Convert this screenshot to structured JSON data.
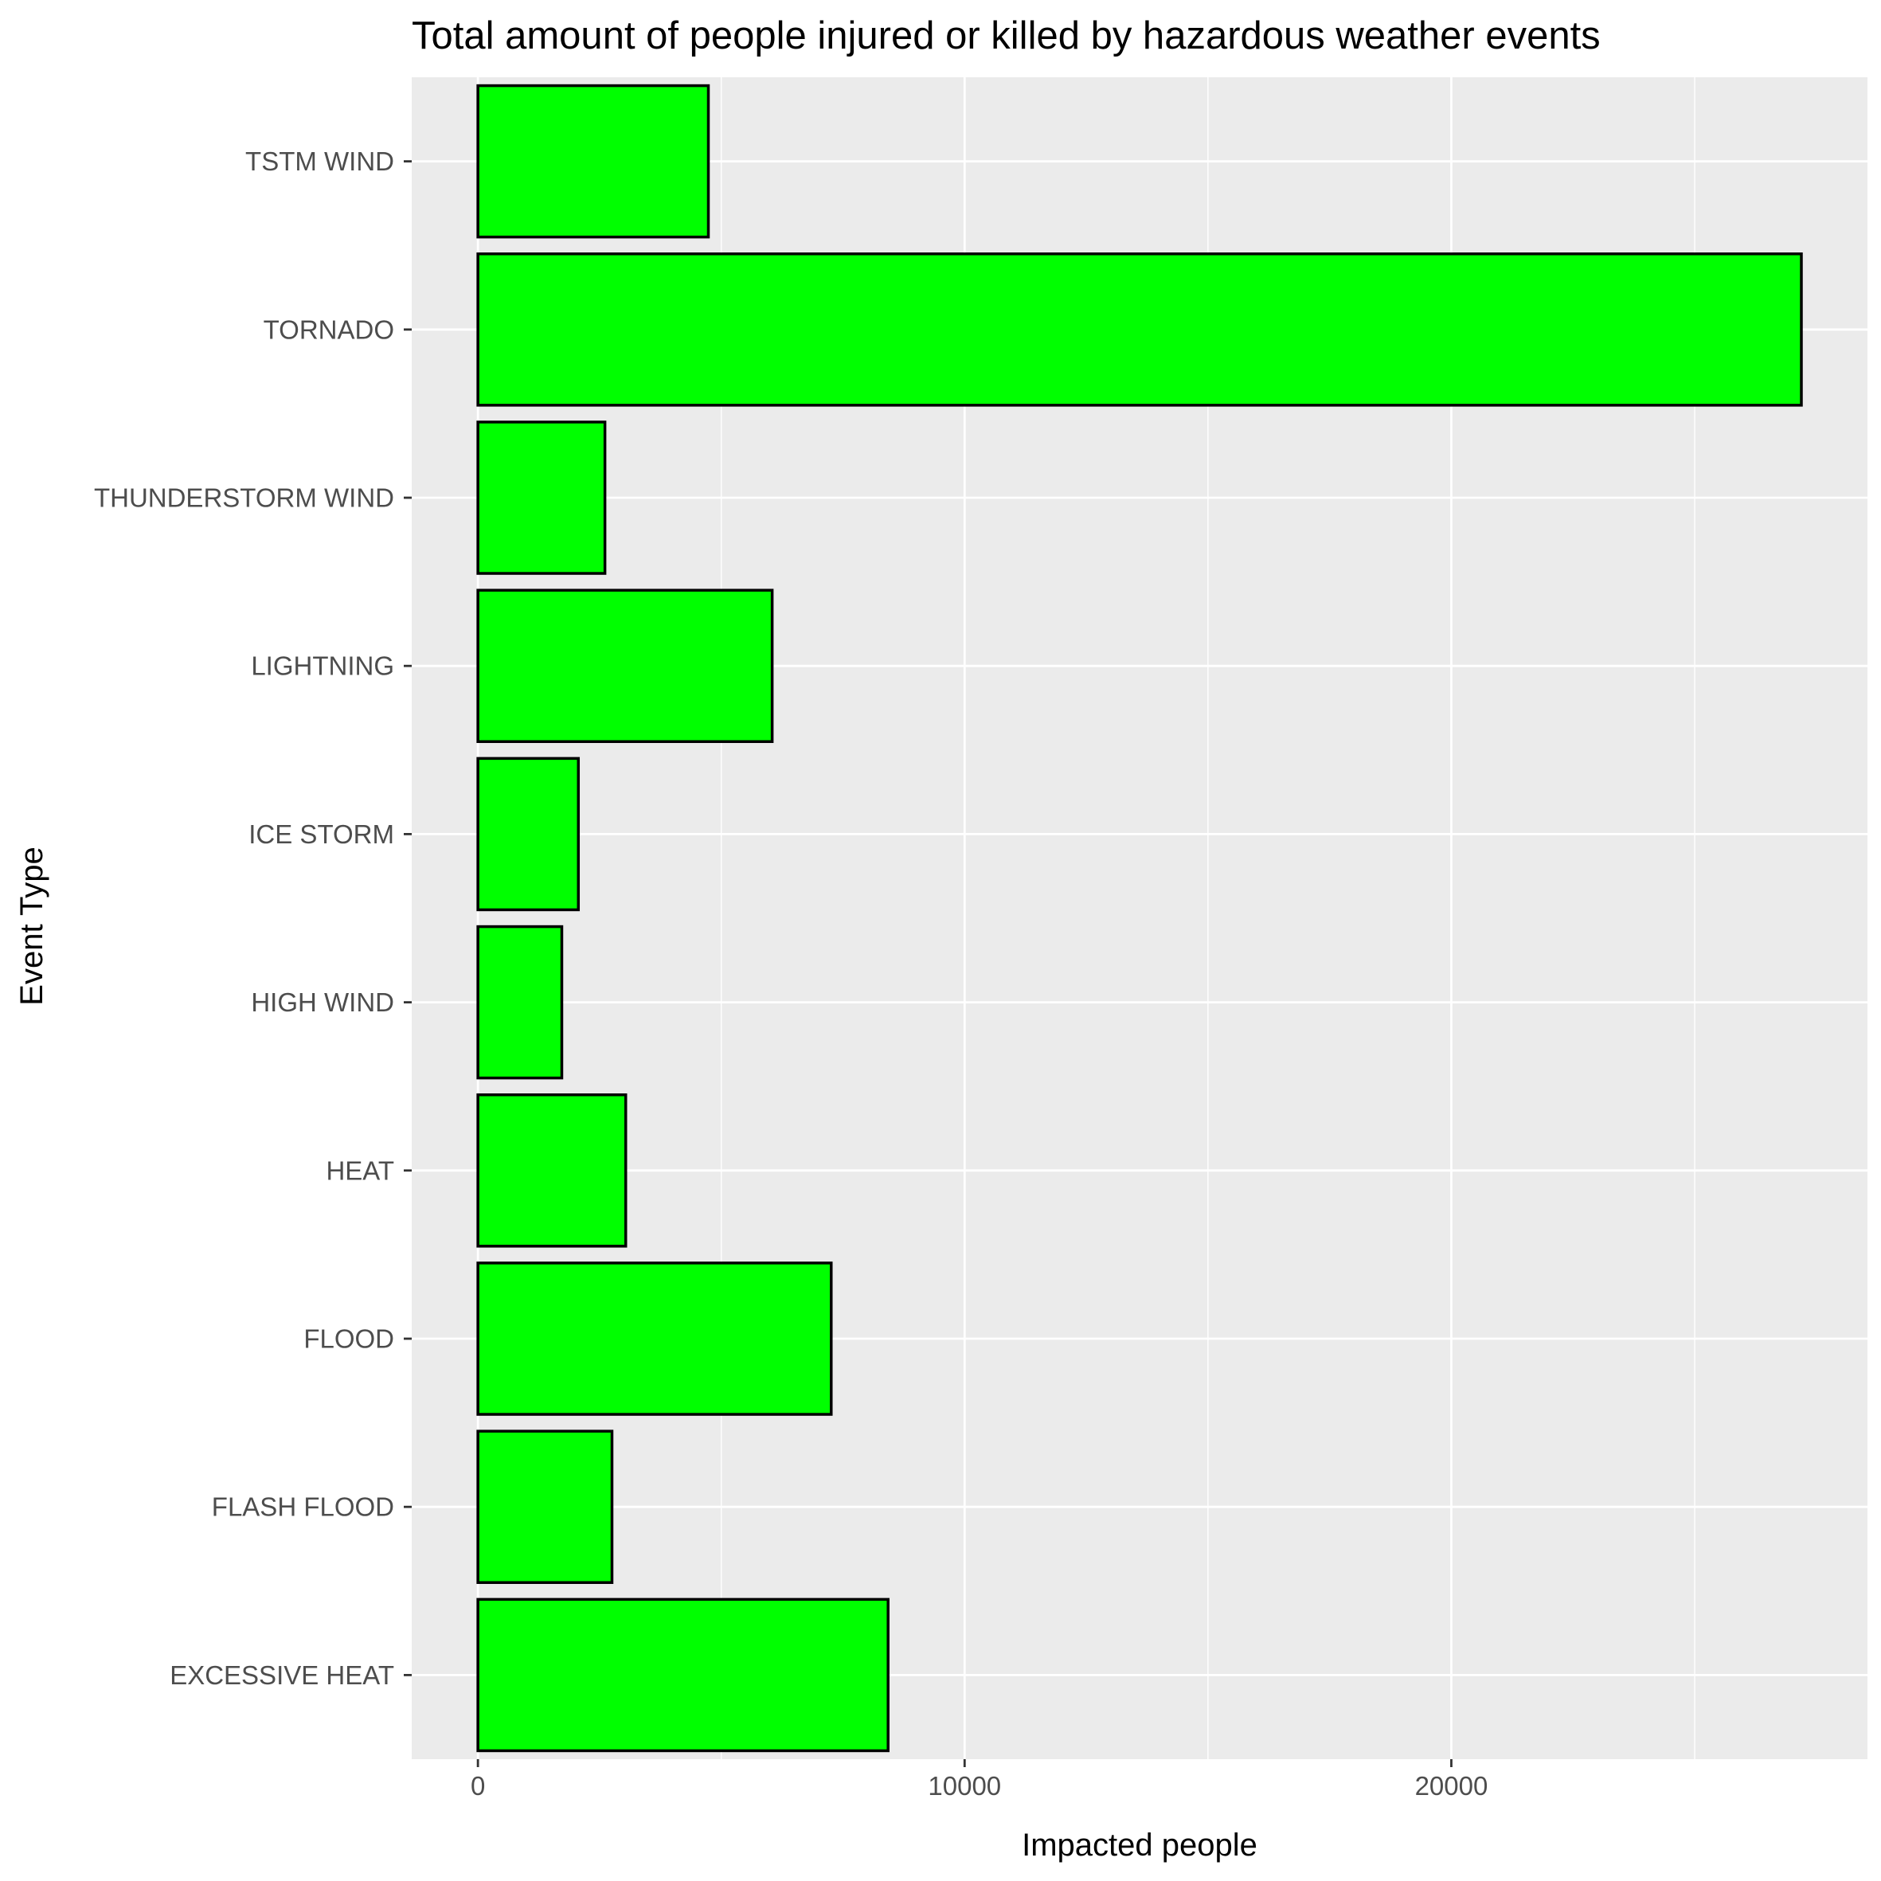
{
  "chart_data": {
    "type": "bar",
    "orientation": "horizontal",
    "title": "Total amount of people injured or killed by hazardous weather events",
    "xlabel": "Impacted people",
    "ylabel": "Event Type",
    "categories": [
      "EXCESSIVE HEAT",
      "FLASH FLOOD",
      "FLOOD",
      "HEAT",
      "HIGH WIND",
      "ICE STORM",
      "LIGHTNING",
      "THUNDERSTORM WIND",
      "TORNADO",
      "TSTM WIND"
    ],
    "values": [
      8428,
      2755,
      7259,
      3037,
      1724,
      2064,
      6046,
      2610,
      27192,
      4735
    ],
    "xlim": [
      -1360,
      28550
    ],
    "xticks": [
      0,
      10000,
      20000
    ],
    "xtick_labels": [
      "0",
      "10000",
      "20000"
    ],
    "grid": true,
    "colors": {
      "bar_fill": "#00ff00",
      "bar_stroke": "#000000",
      "panel_background": "#ebebeb",
      "grid": "#ffffff"
    }
  }
}
